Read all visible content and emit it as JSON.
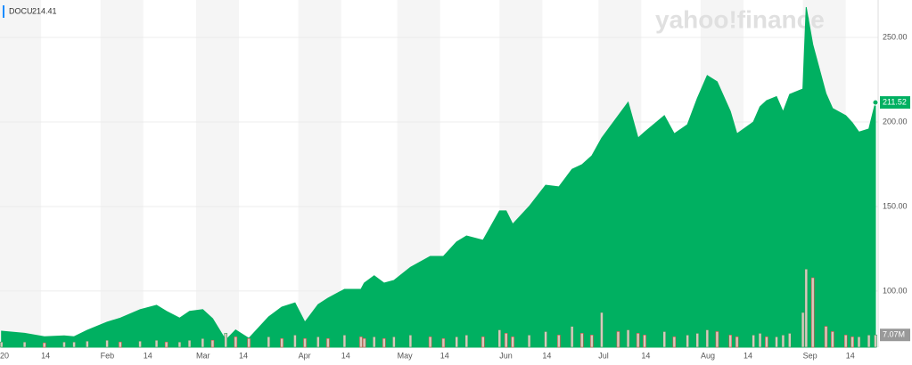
{
  "chart_data": {
    "type": "area",
    "legend_symbol": "DOCU",
    "legend_value": 214.41,
    "watermark": "yahoo!finance",
    "x": [
      "2020-01-02",
      "2020-01-09",
      "2020-01-15",
      "2020-01-21",
      "2020-01-24",
      "2020-01-28",
      "2020-02-03",
      "2020-02-07",
      "2020-02-13",
      "2020-02-18",
      "2020-02-21",
      "2020-02-25",
      "2020-02-28",
      "2020-03-03",
      "2020-03-06",
      "2020-03-10",
      "2020-03-13",
      "2020-03-17",
      "2020-03-23",
      "2020-03-27",
      "2020-03-31",
      "2020-04-03",
      "2020-04-07",
      "2020-04-10",
      "2020-04-15",
      "2020-04-20",
      "2020-04-21",
      "2020-04-24",
      "2020-04-27",
      "2020-04-30",
      "2020-05-05",
      "2020-05-11",
      "2020-05-15",
      "2020-05-19",
      "2020-05-22",
      "2020-05-27",
      "2020-06-01",
      "2020-06-03",
      "2020-06-05",
      "2020-06-10",
      "2020-06-15",
      "2020-06-19",
      "2020-06-23",
      "2020-06-26",
      "2020-06-29",
      "2020-07-02",
      "2020-07-07",
      "2020-07-10",
      "2020-07-13",
      "2020-07-15",
      "2020-07-21",
      "2020-07-24",
      "2020-07-28",
      "2020-07-31",
      "2020-08-03",
      "2020-08-06",
      "2020-08-10",
      "2020-08-12",
      "2020-08-17",
      "2020-08-19",
      "2020-08-21",
      "2020-08-24",
      "2020-08-26",
      "2020-08-28",
      "2020-09-01",
      "2020-09-02",
      "2020-09-04",
      "2020-09-08",
      "2020-09-10",
      "2020-09-14",
      "2020-09-16",
      "2020-09-18",
      "2020-09-21",
      "2020-09-23"
    ],
    "series": [
      {
        "name": "DOCU",
        "color": "#00b061",
        "values": [
          76.3,
          75.0,
          73.0,
          73.5,
          73.0,
          76.8,
          81.6,
          84.0,
          89.0,
          91.6,
          88.0,
          84.0,
          88.0,
          89.0,
          83.7,
          71.0,
          77.0,
          72.0,
          84.7,
          90.5,
          93.0,
          81.6,
          92.0,
          95.8,
          101.0,
          101.0,
          104.7,
          109.0,
          104.7,
          106.3,
          114.0,
          120.5,
          120.5,
          129.0,
          132.6,
          130.0,
          147.4,
          147.4,
          139.5,
          150.0,
          162.6,
          161.6,
          172.0,
          174.7,
          180.0,
          190.5,
          203.7,
          211.6,
          190.5,
          194.0,
          203.7,
          193.0,
          198.4,
          214.0,
          227.4,
          223.7,
          206.3,
          193.0,
          200.0,
          209.0,
          212.6,
          215.0,
          206.0,
          216.3,
          219.5,
          267.9,
          245.8,
          216.8,
          208.0,
          203.7,
          199.5,
          194.0,
          195.8,
          211.52
        ]
      },
      {
        "axis": "y2",
        "color": "#d8c8bd",
        "values": [
          3,
          3,
          2.5,
          3,
          3,
          3.5,
          4,
          3,
          3.5,
          4,
          3,
          3,
          4,
          5,
          4,
          8,
          6,
          5,
          6,
          5,
          7,
          5,
          6,
          5,
          7,
          6,
          5,
          6,
          5,
          6,
          7,
          6,
          5,
          6,
          7,
          6,
          10,
          8,
          6,
          7,
          9,
          7,
          12,
          8,
          7,
          20,
          9,
          10,
          8,
          7,
          9,
          6,
          7,
          8,
          10,
          9,
          7,
          6,
          7,
          8,
          6,
          6,
          7,
          8,
          20,
          45,
          40,
          12,
          9,
          7,
          6,
          6,
          7,
          7.07
        ]
      }
    ],
    "last_price": {
      "value": 211.52,
      "label": "211.52"
    },
    "last_volume": {
      "value": 7.07,
      "label": "7.07M"
    },
    "xlim": [
      "2020-01-01",
      "2020-09-23"
    ],
    "xticks": [
      {
        "value": "2020-01-01",
        "label": "20"
      },
      {
        "value": "2020-01-14",
        "label": "14"
      },
      {
        "value": "2020-02-01",
        "label": "Feb"
      },
      {
        "value": "2020-02-14",
        "label": "14"
      },
      {
        "value": "2020-03-01",
        "label": "Mar"
      },
      {
        "value": "2020-03-14",
        "label": "14"
      },
      {
        "value": "2020-04-01",
        "label": "Apr"
      },
      {
        "value": "2020-04-14",
        "label": "14"
      },
      {
        "value": "2020-05-01",
        "label": "May"
      },
      {
        "value": "2020-05-14",
        "label": "14"
      },
      {
        "value": "2020-06-01",
        "label": "Jun"
      },
      {
        "value": "2020-06-14",
        "label": "14"
      },
      {
        "value": "2020-07-01",
        "label": "Jul"
      },
      {
        "value": "2020-07-14",
        "label": "14"
      },
      {
        "value": "2020-08-01",
        "label": "Aug"
      },
      {
        "value": "2020-08-14",
        "label": "14"
      },
      {
        "value": "2020-09-01",
        "label": "Sep"
      },
      {
        "value": "2020-09-14",
        "label": "14"
      }
    ],
    "ylim": [
      66.8,
      272.1
    ],
    "yticks": [
      {
        "value": 100,
        "label": "100.00"
      },
      {
        "value": 150,
        "label": "150.00"
      },
      {
        "value": 200,
        "label": "200.00"
      },
      {
        "value": 250,
        "label": "250.00"
      }
    ],
    "y2lim": [
      0,
      200
    ],
    "grid": true
  }
}
